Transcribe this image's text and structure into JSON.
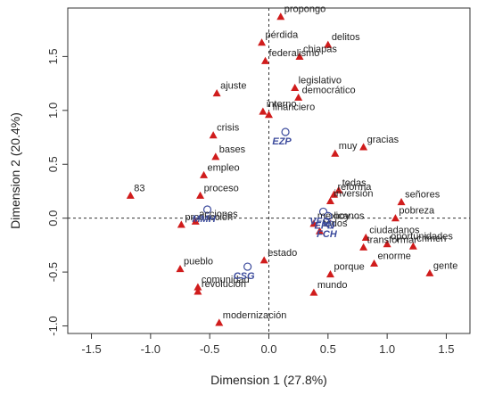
{
  "chart_data": {
    "type": "scatter",
    "xlabel": "Dimension 1 (27.8%)",
    "ylabel": "Dimension 2 (20.4%)",
    "xlim": [
      -1.7,
      1.7
    ],
    "ylim": [
      -1.07,
      1.95
    ],
    "x_ticks": [
      -1.5,
      -1.0,
      -0.5,
      0.0,
      0.5,
      1.0,
      1.5
    ],
    "x_tick_labels": [
      "-1.5",
      "-1.0",
      "-0.5",
      "0.0",
      "0.5",
      "1.0",
      "1.5"
    ],
    "y_ticks": [
      -1.0,
      -0.5,
      0.0,
      0.5,
      1.0,
      1.5
    ],
    "y_tick_labels": [
      "-1.0",
      "-0.5",
      "0.0",
      "0.5",
      "1.0",
      "1.5"
    ],
    "reference_lines": {
      "x": 0,
      "y": 0,
      "style": "dashed"
    },
    "colors": {
      "word": "#d01c1c",
      "author": "#3b4a9c",
      "axis": "#333333"
    },
    "series": [
      {
        "marker": "triangle",
        "points": [
          {
            "label": "propongo",
            "x": 0.1,
            "y": 1.87
          },
          {
            "label": "pérdida",
            "x": -0.06,
            "y": 1.63
          },
          {
            "label": "delitos",
            "x": 0.5,
            "y": 1.61
          },
          {
            "label": "federalismo",
            "x": -0.03,
            "y": 1.46
          },
          {
            "label": "chiapas",
            "x": 0.26,
            "y": 1.5
          },
          {
            "label": "legislativo",
            "x": 0.22,
            "y": 1.21
          },
          {
            "label": "ajuste",
            "x": -0.44,
            "y": 1.16
          },
          {
            "label": "democrático",
            "x": 0.25,
            "y": 1.12
          },
          {
            "label": "interno",
            "x": -0.05,
            "y": 0.99
          },
          {
            "label": "financiero",
            "x": 0.0,
            "y": 0.96
          },
          {
            "label": "crisis",
            "x": -0.47,
            "y": 0.77
          },
          {
            "label": "gracias",
            "x": 0.8,
            "y": 0.66
          },
          {
            "label": "muy",
            "x": 0.56,
            "y": 0.6
          },
          {
            "label": "bases",
            "x": -0.45,
            "y": 0.57
          },
          {
            "label": "empleo",
            "x": -0.55,
            "y": 0.4
          },
          {
            "label": "83",
            "x": -1.17,
            "y": 0.21
          },
          {
            "label": "proceso",
            "x": -0.58,
            "y": 0.21
          },
          {
            "label": "todas",
            "x": 0.59,
            "y": 0.26
          },
          {
            "label": "reforma",
            "x": 0.55,
            "y": 0.22
          },
          {
            "label": "inversión",
            "x": 0.52,
            "y": 0.16
          },
          {
            "label": "señores",
            "x": 1.12,
            "y": 0.15
          },
          {
            "label": "pobreza",
            "x": 1.07,
            "y": 0.0
          },
          {
            "label": "acciones",
            "x": -0.62,
            "y": -0.03
          },
          {
            "label": "producción",
            "x": -0.74,
            "y": -0.06
          },
          {
            "label": "mexicanos",
            "x": 0.38,
            "y": -0.05
          },
          {
            "label": "hoy",
            "x": 0.52,
            "y": -0.05
          },
          {
            "label": "todos",
            "x": 0.43,
            "y": -0.12
          },
          {
            "label": "ciudadanos",
            "x": 0.82,
            "y": -0.18
          },
          {
            "label": "crimen",
            "x": 1.22,
            "y": -0.26
          },
          {
            "label": "transformar",
            "x": 0.8,
            "y": -0.27
          },
          {
            "label": "oportunidades",
            "x": 1.0,
            "y": -0.24
          },
          {
            "label": "estado",
            "x": -0.04,
            "y": -0.39
          },
          {
            "label": "enorme",
            "x": 0.89,
            "y": -0.42
          },
          {
            "label": "pueblo",
            "x": -0.75,
            "y": -0.47
          },
          {
            "label": "porque",
            "x": 0.52,
            "y": -0.52
          },
          {
            "label": "gente",
            "x": 1.36,
            "y": -0.51
          },
          {
            "label": "comunidad",
            "x": -0.6,
            "y": -0.64
          },
          {
            "label": "revolución",
            "x": -0.6,
            "y": -0.68
          },
          {
            "label": "mundo",
            "x": 0.38,
            "y": -0.69
          },
          {
            "label": "modernización",
            "x": -0.42,
            "y": -0.97
          }
        ]
      },
      {
        "marker": "circle",
        "points": [
          {
            "label": "EZP",
            "x": 0.14,
            "y": 0.8
          },
          {
            "label": "MMH",
            "x": -0.52,
            "y": 0.08
          },
          {
            "label": "VFQ",
            "x": 0.46,
            "y": 0.06
          },
          {
            "label": "EPN",
            "x": 0.5,
            "y": 0.02
          },
          {
            "label": "FCH",
            "x": 0.52,
            "y": -0.06
          },
          {
            "label": "CSG",
            "x": -0.18,
            "y": -0.45
          }
        ]
      }
    ]
  }
}
